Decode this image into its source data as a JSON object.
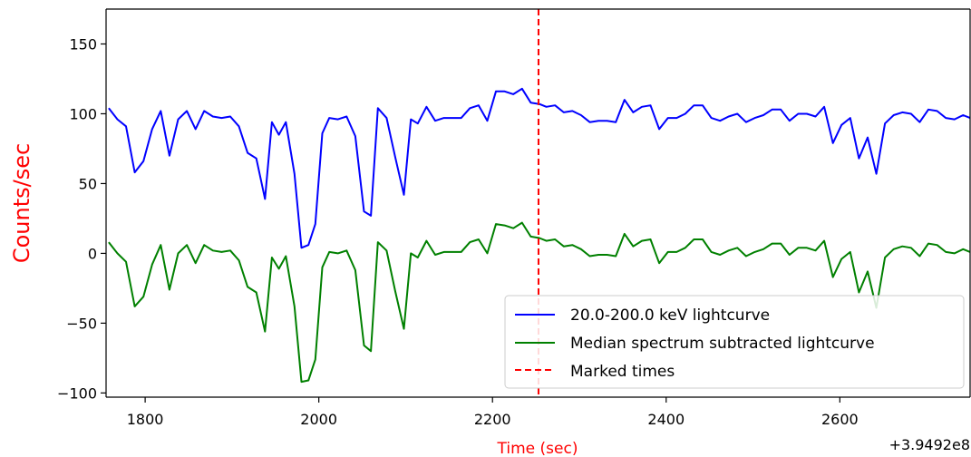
{
  "chart_data": {
    "type": "line",
    "title": "",
    "xlabel": "Time (sec)",
    "ylabel": "Counts/sec",
    "label_color": "#ff0000",
    "x_offset_label": "+3.9492e8",
    "xlim": [
      1755,
      2750
    ],
    "ylim": [
      -103,
      175
    ],
    "x_ticks": [
      1800,
      2000,
      2200,
      2400,
      2600
    ],
    "y_ticks": [
      -100,
      -50,
      0,
      50,
      100,
      150
    ],
    "grid": false,
    "legend_position": "bottom-right",
    "marked_times": [
      2253
    ],
    "marked_color": "#ff0000",
    "series": [
      {
        "name": "20.0-200.0 keV lightcurve",
        "color": "#0000ff",
        "x": [
          1758,
          1768,
          1778,
          1788,
          1798,
          1808,
          1818,
          1828,
          1838,
          1848,
          1858,
          1868,
          1878,
          1888,
          1898,
          1908,
          1918,
          1928,
          1938,
          1946,
          1954,
          1962,
          1972,
          1980,
          1988,
          1996,
          2004,
          2012,
          2022,
          2032,
          2042,
          2052,
          2060,
          2068,
          2078,
          2088,
          2098,
          2106,
          2114,
          2124,
          2134,
          2144,
          2154,
          2164,
          2174,
          2184,
          2194,
          2204,
          2214,
          2224,
          2234,
          2244,
          2254,
          2262,
          2272,
          2282,
          2292,
          2302,
          2312,
          2322,
          2332,
          2342,
          2352,
          2362,
          2372,
          2382,
          2392,
          2402,
          2412,
          2422,
          2432,
          2442,
          2452,
          2462,
          2472,
          2482,
          2492,
          2502,
          2512,
          2522,
          2532,
          2542,
          2552,
          2562,
          2572,
          2582,
          2592,
          2602,
          2612,
          2622,
          2632,
          2642,
          2652,
          2662,
          2672,
          2682,
          2692,
          2702,
          2712,
          2722,
          2732,
          2742,
          2750
        ],
        "y": [
          104,
          96,
          91,
          58,
          66,
          89,
          102,
          70,
          96,
          102,
          89,
          102,
          98,
          97,
          98,
          91,
          72,
          68,
          39,
          94,
          85,
          94,
          57,
          4,
          6,
          21,
          86,
          97,
          96,
          98,
          84,
          30,
          27,
          104,
          97,
          69,
          42,
          96,
          93,
          105,
          95,
          97,
          97,
          97,
          104,
          106,
          95,
          116,
          116,
          114,
          118,
          108,
          107,
          105,
          106,
          101,
          102,
          99,
          94,
          95,
          95,
          94,
          110,
          101,
          105,
          106,
          89,
          97,
          97,
          100,
          106,
          106,
          97,
          95,
          98,
          100,
          94,
          97,
          99,
          103,
          103,
          95,
          100,
          100,
          98,
          105,
          79,
          92,
          97,
          68,
          83,
          57,
          93,
          99,
          101,
          100,
          94,
          103,
          102,
          97,
          96,
          99,
          97
        ]
      },
      {
        "name": "Median spectrum subtracted lightcurve",
        "color": "#008000",
        "x": [
          1758,
          1768,
          1778,
          1788,
          1798,
          1808,
          1818,
          1828,
          1838,
          1848,
          1858,
          1868,
          1878,
          1888,
          1898,
          1908,
          1918,
          1928,
          1938,
          1946,
          1954,
          1962,
          1972,
          1980,
          1988,
          1996,
          2004,
          2012,
          2022,
          2032,
          2042,
          2052,
          2060,
          2068,
          2078,
          2088,
          2098,
          2106,
          2114,
          2124,
          2134,
          2144,
          2154,
          2164,
          2174,
          2184,
          2194,
          2204,
          2214,
          2224,
          2234,
          2244,
          2254,
          2262,
          2272,
          2282,
          2292,
          2302,
          2312,
          2322,
          2332,
          2342,
          2352,
          2362,
          2372,
          2382,
          2392,
          2402,
          2412,
          2422,
          2432,
          2442,
          2452,
          2462,
          2472,
          2482,
          2492,
          2502,
          2512,
          2522,
          2532,
          2542,
          2552,
          2562,
          2572,
          2582,
          2592,
          2602,
          2612,
          2622,
          2632,
          2642,
          2652,
          2662,
          2672,
          2682,
          2692,
          2702,
          2712,
          2722,
          2732,
          2742,
          2750
        ],
        "y": [
          8,
          0,
          -6,
          -38,
          -31,
          -8,
          6,
          -26,
          0,
          6,
          -7,
          6,
          2,
          1,
          2,
          -5,
          -24,
          -28,
          -56,
          -3,
          -11,
          -2,
          -38,
          -92,
          -91,
          -76,
          -10,
          1,
          0,
          2,
          -12,
          -66,
          -70,
          8,
          2,
          -27,
          -54,
          0,
          -3,
          9,
          -1,
          1,
          1,
          1,
          8,
          10,
          0,
          21,
          20,
          18,
          22,
          12,
          11,
          9,
          10,
          5,
          6,
          3,
          -2,
          -1,
          -1,
          -2,
          14,
          5,
          9,
          10,
          -7,
          1,
          1,
          4,
          10,
          10,
          1,
          -1,
          2,
          4,
          -2,
          1,
          3,
          7,
          7,
          -1,
          4,
          4,
          2,
          9,
          -17,
          -4,
          1,
          -28,
          -13,
          -39,
          -3,
          3,
          5,
          4,
          -2,
          7,
          6,
          1,
          0,
          3,
          1
        ]
      },
      {
        "name": "Marked times",
        "color": "#ff0000",
        "style": "dashed"
      }
    ]
  }
}
